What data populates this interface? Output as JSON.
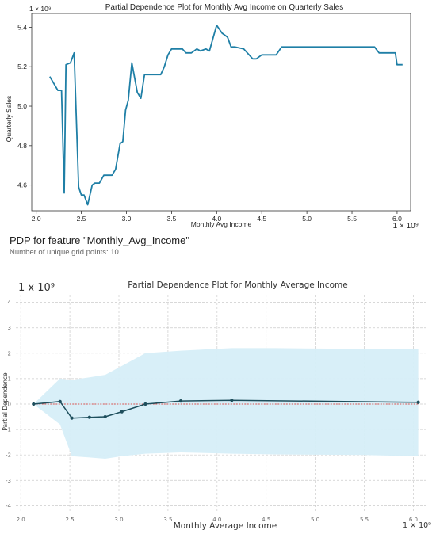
{
  "header": {
    "pdp_feature": "PDP for feature \"Monthly_Avg_Income\"",
    "grid_points": "Number of unique grid points: 10"
  },
  "chart_data": [
    {
      "type": "line",
      "title": "Partial Dependence Plot for Monthly Avg Income on Quarterly Sales",
      "xlabel": "Monthly Avg Income",
      "ylabel": "Quarterly Sales",
      "x_scale_label": "1 × 10⁹",
      "y_scale_label": "1 × 10⁹",
      "xlim": [
        1.95,
        6.15
      ],
      "ylim": [
        4.47,
        5.47
      ],
      "xticks": [
        2.0,
        2.5,
        3.0,
        3.5,
        4.0,
        4.5,
        5.0,
        5.5,
        6.0
      ],
      "xtick_labels": [
        "2.0",
        "2.5",
        "3.0",
        "3.5",
        "4.0",
        "4.5",
        "5.0",
        "5.5",
        "6.0"
      ],
      "yticks": [
        4.6,
        4.8,
        5.0,
        5.2,
        5.4
      ],
      "ytick_labels": [
        "4.6",
        "4.8",
        "5.0",
        "5.2",
        "5.4"
      ],
      "grid": false,
      "color": "#1f7fa6",
      "series": [
        {
          "x": [
            2.15,
            2.24,
            2.28,
            2.31,
            2.33,
            2.38,
            2.42,
            2.47,
            2.5,
            2.53,
            2.57,
            2.62,
            2.65,
            2.7,
            2.75,
            2.8,
            2.84,
            2.88,
            2.93,
            2.96,
            2.99,
            3.02,
            3.06,
            3.12,
            3.16,
            3.2,
            3.24,
            3.3,
            3.38,
            3.42,
            3.46,
            3.5,
            3.55,
            3.62,
            3.66,
            3.72,
            3.78,
            3.82,
            3.88,
            3.92,
            4.0,
            4.06,
            4.12,
            4.16,
            4.2,
            4.3,
            4.34,
            4.4,
            4.44,
            4.5,
            4.58,
            4.66,
            4.72,
            4.9,
            5.1,
            5.2,
            5.45,
            5.75,
            5.8,
            5.98,
            6.0,
            6.06
          ],
          "y": [
            5.15,
            5.08,
            5.08,
            4.56,
            5.21,
            5.22,
            5.27,
            4.59,
            4.55,
            4.55,
            4.5,
            4.6,
            4.61,
            4.61,
            4.65,
            4.65,
            4.65,
            4.68,
            4.81,
            4.82,
            4.98,
            5.03,
            5.22,
            5.07,
            5.04,
            5.16,
            5.16,
            5.16,
            5.16,
            5.2,
            5.26,
            5.29,
            5.29,
            5.29,
            5.27,
            5.27,
            5.29,
            5.28,
            5.29,
            5.28,
            5.41,
            5.37,
            5.35,
            5.3,
            5.3,
            5.29,
            5.27,
            5.24,
            5.24,
            5.26,
            5.26,
            5.26,
            5.3,
            5.3,
            5.3,
            5.3,
            5.3,
            5.3,
            5.27,
            5.27,
            5.21,
            5.21
          ]
        }
      ]
    },
    {
      "type": "line",
      "title": "Partial Dependence Plot for Monthly Average Income",
      "xlabel": "Monthly Average Income",
      "ylabel": "Partial Dependence",
      "x_scale_label": "1 × 10⁹",
      "y_scale_label": "1 x 10⁹",
      "xlim": [
        1.95,
        6.15
      ],
      "ylim": [
        -4.3,
        4.3
      ],
      "xticks": [
        2.0,
        2.5,
        3.0,
        3.5,
        4.0,
        4.5,
        5.0,
        5.5,
        6.0
      ],
      "xtick_labels": [
        "2.0",
        "2.5",
        "3.0",
        "3.5",
        "4.0",
        "4.5",
        "5.0",
        "5.5",
        "6.0"
      ],
      "yticks": [
        4,
        3,
        2,
        1,
        0,
        -1,
        -2,
        -3,
        -4
      ],
      "ytick_labels": [
        "4",
        "3",
        "2",
        "1",
        "0",
        "-1",
        "-2",
        "-3",
        "-4"
      ],
      "grid": true,
      "baseline": 0,
      "colors": {
        "line": "#1d4e5c",
        "band": "#d6eef8",
        "baseline": "#d9534f"
      },
      "series": [
        {
          "x": [
            2.13,
            2.4,
            2.52,
            2.7,
            2.86,
            3.03,
            3.27,
            3.63,
            4.15,
            6.05
          ],
          "y": [
            0.0,
            0.1,
            -0.55,
            -0.52,
            -0.5,
            -0.3,
            0.0,
            0.12,
            0.15,
            0.07
          ]
        }
      ],
      "band": {
        "x": [
          2.13,
          2.4,
          2.52,
          2.7,
          2.86,
          3.03,
          3.27,
          3.63,
          4.15,
          4.6,
          5.5,
          6.05
        ],
        "upper": [
          0.0,
          1.0,
          0.95,
          1.05,
          1.15,
          1.5,
          2.0,
          2.1,
          2.2,
          2.2,
          2.17,
          2.15
        ],
        "lower": [
          0.0,
          -0.8,
          -2.05,
          -2.1,
          -2.15,
          -2.05,
          -1.95,
          -1.9,
          -1.95,
          -1.98,
          -2.0,
          -2.05
        ]
      }
    }
  ]
}
